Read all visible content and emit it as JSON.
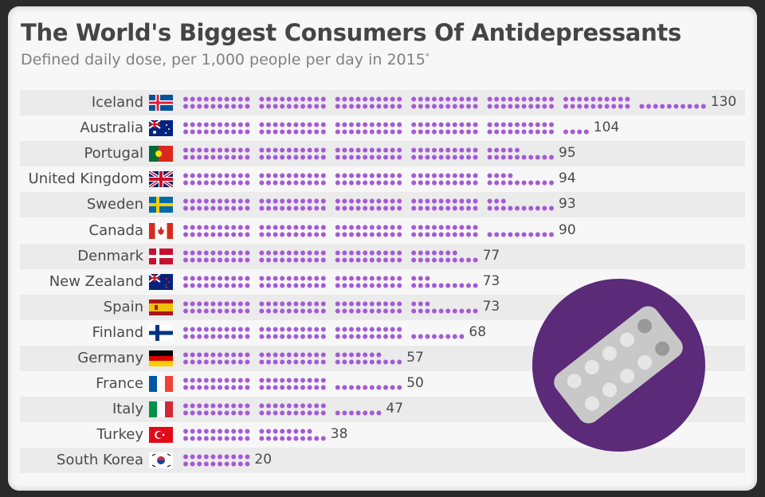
{
  "chart_data": {
    "type": "bar",
    "title": "The World's Biggest Consumers Of Antidepressants",
    "subtitle": "Defined daily dose, per 1,000 people per day in 2015",
    "subtitle_mark": "*",
    "categories": [
      "Iceland",
      "Australia",
      "Portugal",
      "United Kingdom",
      "Sweden",
      "Canada",
      "Denmark",
      "New Zealand",
      "Spain",
      "Finland",
      "Germany",
      "France",
      "Italy",
      "Turkey",
      "South Korea"
    ],
    "values": [
      130,
      104,
      95,
      94,
      93,
      90,
      77,
      73,
      73,
      68,
      57,
      50,
      47,
      38,
      20
    ],
    "unit_per_dot": 1,
    "dot_color": "#a45ad6",
    "xlabel": "",
    "ylabel": ""
  },
  "icon": {
    "name": "pill-blister-icon",
    "circle_color": "#5b2a78"
  }
}
